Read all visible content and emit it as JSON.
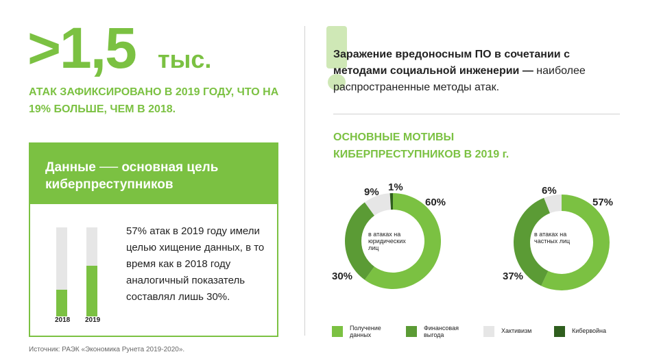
{
  "stat": {
    "big": ">1,5",
    "unit": "тыс.",
    "caption": "АТАК ЗАФИКСИРОВАНО В 2019 ГОДУ, ЧТО НА 19% БОЛЬШЕ, ЧЕМ В 2018."
  },
  "card": {
    "title": "Данные ── основная цель киберпреступников",
    "text": "57% атак в 2019 году имели целью хищение данных, в то время как в 2018 году аналогичный показатель составлял лишь 30%."
  },
  "headline": {
    "bold": "Заражение вредоносным ПО в сочетании с методами социальной инженерии —",
    "rest": "наиболее распространенные методы атак."
  },
  "motives_title": "ОСНОВНЫЕ МОТИВЫ КИБЕРПРЕСТУПНИКОВ В 2019 г.",
  "source": "Источник: РАЭК «Экономика Рунета 2019-2020».",
  "colors": {
    "accent": "#7bc142",
    "dark_green": "#5b9b35",
    "grey": "#e6e6e6",
    "darkest": "#2f5e1e"
  },
  "chart_data": [
    {
      "type": "bar",
      "categories": [
        "2018",
        "2019"
      ],
      "values": [
        30,
        57
      ],
      "ylim": [
        0,
        100
      ]
    },
    {
      "type": "pie",
      "center_label": "в атаках на юридических лиц",
      "labels": [
        "Получение данных",
        "Финансовая выгода",
        "Хактивизм",
        "Кибервойна"
      ],
      "values": [
        60,
        30,
        9,
        1
      ],
      "value_labels": [
        "60%",
        "30%",
        "9%",
        "1%"
      ]
    },
    {
      "type": "pie",
      "center_label": "в атаках на частных лиц",
      "labels": [
        "Получение данных",
        "Финансовая выгода",
        "Хактивизм",
        "Кибервойна"
      ],
      "values": [
        57,
        37,
        6,
        0
      ],
      "value_labels": [
        "57%",
        "37%",
        "6%",
        ""
      ]
    }
  ],
  "legend": [
    {
      "label": "Получение данных",
      "color": "#7bc142"
    },
    {
      "label": "Финансовая выгода",
      "color": "#5b9b35"
    },
    {
      "label": "Хактивизм",
      "color": "#e6e6e6"
    },
    {
      "label": "Кибервойна",
      "color": "#2f5e1e"
    }
  ]
}
